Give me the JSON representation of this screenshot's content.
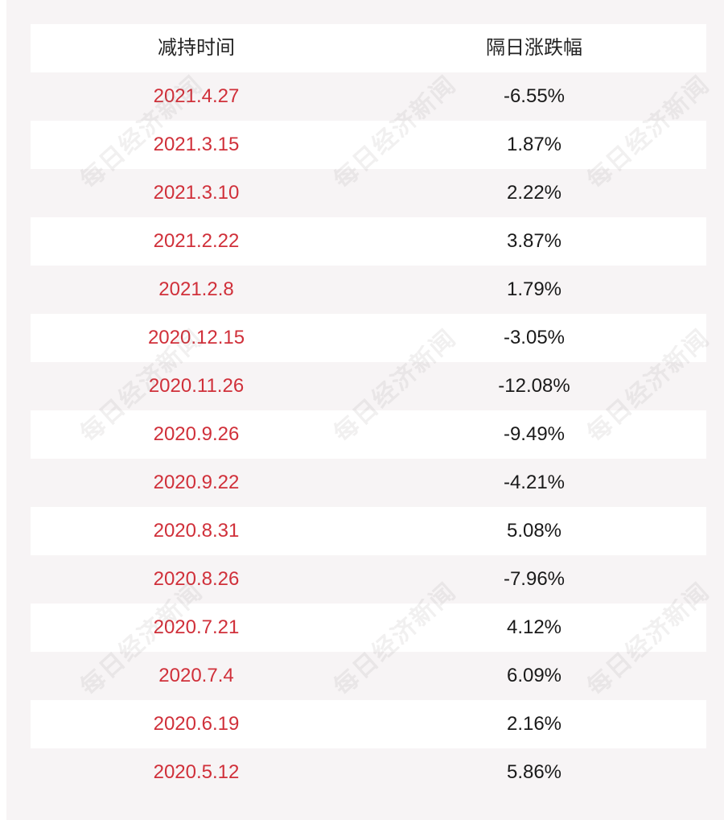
{
  "header": {
    "date_label": "减持时间",
    "change_label": "隔日涨跌幅"
  },
  "rows": [
    {
      "date": "2021.4.27",
      "change": "-6.55%"
    },
    {
      "date": "2021.3.15",
      "change": "1.87%"
    },
    {
      "date": "2021.3.10",
      "change": "2.22%"
    },
    {
      "date": "2021.2.22",
      "change": "3.87%"
    },
    {
      "date": "2021.2.8",
      "change": "1.79%"
    },
    {
      "date": "2020.12.15",
      "change": "-3.05%"
    },
    {
      "date": "2020.11.26",
      "change": "-12.08%"
    },
    {
      "date": "2020.9.26",
      "change": "-9.49%"
    },
    {
      "date": "2020.9.22",
      "change": "-4.21%"
    },
    {
      "date": "2020.8.31",
      "change": "5.08%"
    },
    {
      "date": "2020.8.26",
      "change": "-7.96%"
    },
    {
      "date": "2020.7.21",
      "change": "4.12%"
    },
    {
      "date": "2020.7.4",
      "change": "6.09%"
    },
    {
      "date": "2020.6.19",
      "change": "2.16%"
    },
    {
      "date": "2020.5.12",
      "change": "5.86%"
    }
  ],
  "watermark": {
    "text": "每日经济新闻"
  },
  "colors": {
    "date_text": "#d0303a",
    "change_text": "#1a1a1a",
    "panel_bg": "#f7f4f5",
    "row_white": "#ffffff"
  }
}
